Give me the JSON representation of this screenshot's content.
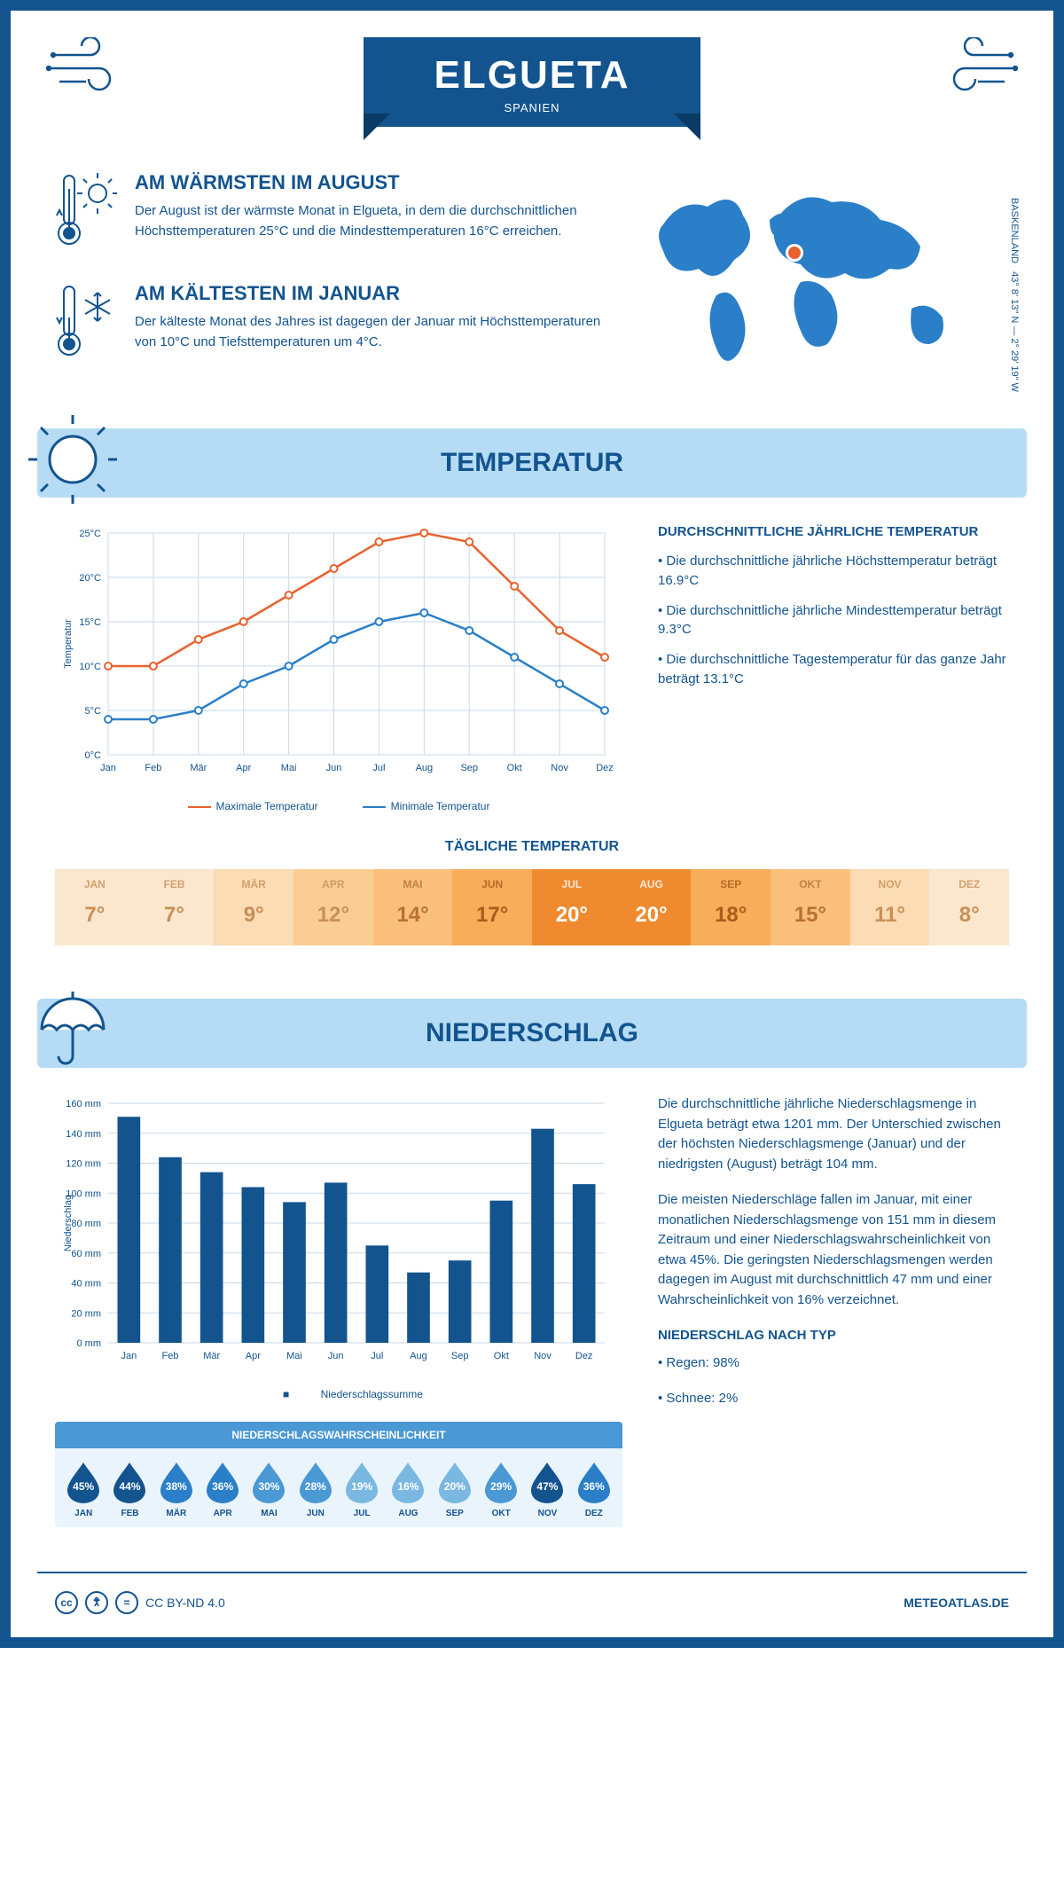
{
  "header": {
    "city": "ELGUETA",
    "country": "SPANIEN"
  },
  "coords": {
    "lat": "43° 8' 13\" N",
    "lon": "2° 29' 19\" W",
    "region": "BASKENLAND"
  },
  "facts": {
    "warm": {
      "title": "AM WÄRMSTEN IM AUGUST",
      "text": "Der August ist der wärmste Monat in Elgueta, in dem die durchschnittlichen Höchsttemperaturen 25°C und die Mindesttemperaturen 16°C erreichen."
    },
    "cold": {
      "title": "AM KÄLTESTEN IM JANUAR",
      "text": "Der kälteste Monat des Jahres ist dagegen der Januar mit Höchsttemperaturen von 10°C und Tiefsttemperaturen um 4°C."
    }
  },
  "sections": {
    "temp": "TEMPERATUR",
    "precip": "NIEDERSCHLAG"
  },
  "months": [
    "Jan",
    "Feb",
    "Mär",
    "Apr",
    "Mai",
    "Jun",
    "Jul",
    "Aug",
    "Sep",
    "Okt",
    "Nov",
    "Dez"
  ],
  "months_upper": [
    "JAN",
    "FEB",
    "MÄR",
    "APR",
    "MAI",
    "JUN",
    "JUL",
    "AUG",
    "SEP",
    "OKT",
    "NOV",
    "DEZ"
  ],
  "tempChart": {
    "ylabel": "Temperatur",
    "ylim": [
      0,
      25
    ],
    "ystep": 5,
    "max": {
      "label": "Maximale Temperatur",
      "color": "#e8622e",
      "values": [
        10,
        10,
        13,
        15,
        18,
        21,
        24,
        25,
        24,
        19,
        14,
        11
      ]
    },
    "min": {
      "label": "Minimale Temperatur",
      "color": "#2a7fc8",
      "values": [
        4,
        4,
        5,
        8,
        10,
        13,
        15,
        16,
        14,
        11,
        8,
        5
      ]
    },
    "grid_color": "#c9d9e8"
  },
  "tempSummary": {
    "title": "DURCHSCHNITTLICHE JÄHRLICHE TEMPERATUR",
    "b1": "• Die durchschnittliche jährliche Höchsttemperatur beträgt 16.9°C",
    "b2": "• Die durchschnittliche jährliche Mindesttemperatur beträgt 9.3°C",
    "b3": "• Die durchschnittliche Tagestemperatur für das ganze Jahr beträgt 13.1°C"
  },
  "dailyTemp": {
    "title": "TÄGLICHE TEMPERATUR",
    "values": [
      7,
      7,
      9,
      12,
      14,
      17,
      20,
      20,
      18,
      15,
      11,
      8
    ],
    "colors": [
      "#fbe7ce",
      "#fbe7ce",
      "#fbdcb4",
      "#facd95",
      "#f9bf7b",
      "#f7ad59",
      "#f08a2e",
      "#f08a2e",
      "#f7ad59",
      "#f9bf7b",
      "#fbdcb4",
      "#fbe7ce"
    ],
    "text_colors": [
      "#c88f55",
      "#c88f55",
      "#c88f55",
      "#c88f55",
      "#b9722f",
      "#a85d1c",
      "#ffffff",
      "#ffffff",
      "#a85d1c",
      "#b9722f",
      "#c88f55",
      "#c88f55"
    ]
  },
  "precipChart": {
    "ylabel": "Niederschlag",
    "ylim": [
      0,
      160
    ],
    "ystep": 20,
    "values": [
      151,
      124,
      114,
      104,
      94,
      107,
      65,
      47,
      55,
      95,
      143,
      106
    ],
    "bar_color": "#13548f",
    "legend": "Niederschlagssumme"
  },
  "precipText": {
    "p1": "Die durchschnittliche jährliche Niederschlagsmenge in Elgueta beträgt etwa 1201 mm. Der Unterschied zwischen der höchsten Niederschlagsmenge (Januar) und der niedrigsten (August) beträgt 104 mm.",
    "p2": "Die meisten Niederschläge fallen im Januar, mit einer monatlichen Niederschlagsmenge von 151 mm in diesem Zeitraum und einer Niederschlagswahrscheinlichkeit von etwa 45%. Die geringsten Niederschlagsmengen werden dagegen im August mit durchschnittlich 47 mm und einer Wahrscheinlichkeit von 16% verzeichnet.",
    "type_title": "NIEDERSCHLAG NACH TYP",
    "rain": "• Regen: 98%",
    "snow": "• Schnee: 2%"
  },
  "prob": {
    "title": "NIEDERSCHLAGSWAHRSCHEINLICHKEIT",
    "values": [
      45,
      44,
      38,
      36,
      30,
      28,
      19,
      16,
      20,
      29,
      47,
      36
    ],
    "colors": [
      "#13548f",
      "#13548f",
      "#2a7fc8",
      "#2a7fc8",
      "#4a98d4",
      "#4a98d4",
      "#7ab8e2",
      "#7ab8e2",
      "#7ab8e2",
      "#4a98d4",
      "#13548f",
      "#2a7fc8"
    ]
  },
  "footer": {
    "license": "CC BY-ND 4.0",
    "site": "METEOATLAS.DE"
  }
}
